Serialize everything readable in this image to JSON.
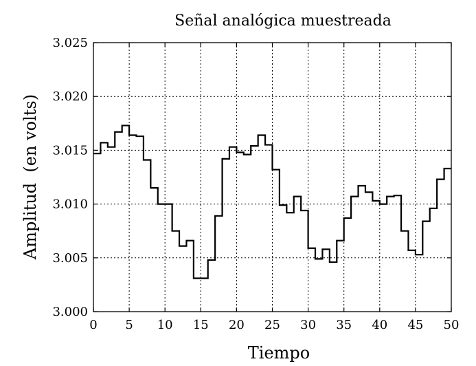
{
  "chart_data": {
    "type": "line",
    "step": true,
    "title": "Señal analógica muestreada",
    "xlabel": "Tiempo",
    "ylabel": "Amplitud  (en volts)",
    "xlim": [
      0,
      50
    ],
    "ylim": [
      3.0,
      3.025
    ],
    "xticks": [
      0,
      5,
      10,
      15,
      20,
      25,
      30,
      35,
      40,
      45,
      50
    ],
    "yticks": [
      3.0,
      3.005,
      3.01,
      3.015,
      3.02,
      3.025
    ],
    "xtick_labels": [
      "0",
      "5",
      "10",
      "15",
      "20",
      "25",
      "30",
      "35",
      "40",
      "45",
      "50"
    ],
    "ytick_labels": [
      "3.000",
      "3.005",
      "3.010",
      "3.015",
      "3.020",
      "3.025"
    ],
    "grid": true,
    "series": [
      {
        "x": [
          0,
          1,
          2,
          3,
          4,
          5,
          6,
          7,
          8,
          9,
          10,
          11,
          12,
          13,
          14,
          15,
          16,
          17,
          18,
          19,
          20,
          21,
          22,
          23,
          24,
          25,
          26,
          27,
          28,
          29,
          30,
          31,
          32,
          33,
          34,
          35,
          36,
          37,
          38,
          39,
          40,
          41,
          42,
          43,
          44,
          45,
          46,
          47,
          48,
          49
        ],
        "values": [
          3.0147,
          3.0157,
          3.0153,
          3.0167,
          3.0173,
          3.0164,
          3.0163,
          3.0141,
          3.0115,
          3.01,
          3.01,
          3.0075,
          3.0061,
          3.0066,
          3.0031,
          3.0031,
          3.0048,
          3.0089,
          3.0142,
          3.0153,
          3.0148,
          3.0146,
          3.0154,
          3.0164,
          3.0155,
          3.0132,
          3.0099,
          3.0092,
          3.0107,
          3.0094,
          3.0059,
          3.0049,
          3.0058,
          3.0046,
          3.0066,
          3.0087,
          3.0107,
          3.0117,
          3.0111,
          3.0103,
          3.01,
          3.0107,
          3.0108,
          3.0075,
          3.0057,
          3.0053,
          3.0084,
          3.0096,
          3.0123,
          3.0133
        ]
      }
    ]
  }
}
